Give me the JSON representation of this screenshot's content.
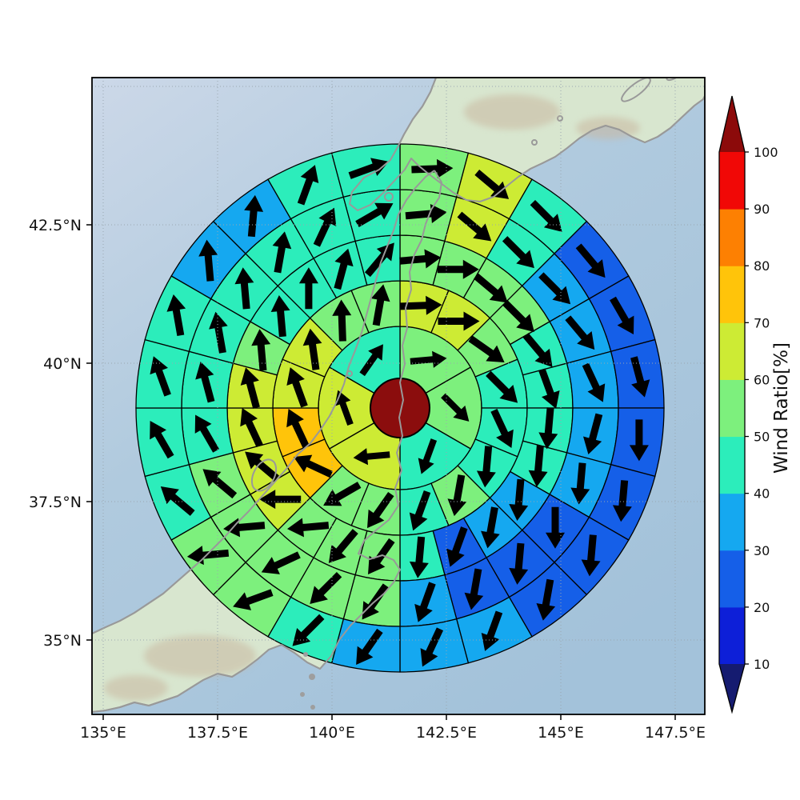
{
  "figure": {
    "background": "#ffffff",
    "plot_border_color": "#000000"
  },
  "chart_data": {
    "type": "polar-sector-heatmap-on-map",
    "title": "",
    "colorbar": {
      "label": "Wind Ratio[%]",
      "tick_labels_top_to_bottom": [
        "100",
        "90",
        "80",
        "70",
        "60",
        "50",
        "40",
        "30",
        "20",
        "10"
      ],
      "bins": [
        {
          "range": "10-20",
          "color": "#0d1fd8"
        },
        {
          "range": "20-30",
          "color": "#155fe8"
        },
        {
          "range": "30-40",
          "color": "#15a8f0"
        },
        {
          "range": "40-50",
          "color": "#2cedbb"
        },
        {
          "range": "50-60",
          "color": "#7df07d"
        },
        {
          "range": "60-70",
          "color": "#cdeb34"
        },
        {
          "range": "70-80",
          "color": "#ffc40a"
        },
        {
          "range": "80-90",
          "color": "#fd8002"
        },
        {
          "range": "90-100",
          "color": "#f10806"
        }
      ],
      "extend_over_color": "#8c0a0a",
      "extend_under_color": "#151b70"
    },
    "x_axis": {
      "tick_labels": [
        "135°E",
        "137.5°E",
        "140°E",
        "142.5°E",
        "145°E",
        "147.5°E"
      ]
    },
    "y_axis": {
      "tick_labels": [
        "35°N",
        "37.5°N",
        "40°N",
        "42.5°N"
      ]
    },
    "epicenter": {
      "marker": "filled-circle",
      "color": "#8b0d0d",
      "outline": "#000000"
    },
    "map": {
      "sea_color": "#abc8de",
      "land_color": "#d8e6cf",
      "coast_color": "#999999",
      "grid_color": "#9aa7b0"
    },
    "arrow_color": "#000000",
    "rings": [
      {
        "sector_count": 6,
        "wind_ratio_bins": [
          "50-60",
          "50-60",
          "40-50",
          "60-70",
          "60-70",
          "40-50"
        ],
        "arrow_to_deg": [
          85,
          135,
          200,
          265,
          340,
          35
        ]
      },
      {
        "sector_count": 16,
        "wind_ratio_bins": [
          "60-70",
          "60-70",
          "50-60",
          "40-50",
          "40-50",
          "40-50",
          "50-60",
          "40-50",
          "50-60",
          "50-60",
          "70-80",
          "70-80",
          "60-70",
          "60-70",
          "50-60",
          "50-60"
        ],
        "arrow_to_deg": [
          88,
          90,
          125,
          135,
          155,
          185,
          190,
          200,
          215,
          240,
          295,
          335,
          340,
          352,
          358,
          10
        ]
      },
      {
        "sector_count": 24,
        "wind_ratio_bins": [
          "50-60",
          "50-60",
          "50-60",
          "50-60",
          "40-50",
          "40-50",
          "40-50",
          "40-50",
          "30-40",
          "30-40",
          "20-30",
          "40-50",
          "50-60",
          "50-60",
          "50-60",
          "60-70",
          "60-70",
          "60-70",
          "60-70",
          "50-60",
          "40-50",
          "40-50",
          "40-50",
          "40-50"
        ],
        "arrow_to_deg": [
          85,
          90,
          130,
          135,
          140,
          160,
          185,
          185,
          185,
          190,
          200,
          185,
          215,
          220,
          265,
          270,
          310,
          335,
          345,
          355,
          355,
          0,
          15,
          40
        ]
      },
      {
        "sector_count": 24,
        "wind_ratio_bins": [
          "50-60",
          "60-70",
          "40-50",
          "30-40",
          "30-40",
          "30-40",
          "30-40",
          "30-40",
          "20-30",
          "20-30",
          "20-30",
          "30-40",
          "50-60",
          "50-60",
          "50-60",
          "50-60",
          "50-60",
          "40-50",
          "40-50",
          "40-50",
          "40-50",
          "40-50",
          "40-50",
          "40-50"
        ],
        "arrow_to_deg": [
          85,
          130,
          135,
          135,
          140,
          155,
          195,
          185,
          180,
          185,
          190,
          200,
          215,
          225,
          245,
          265,
          310,
          330,
          345,
          350,
          355,
          10,
          25,
          60
        ]
      },
      {
        "sector_count": 24,
        "wind_ratio_bins": [
          "50-60",
          "60-70",
          "40-50",
          "20-30",
          "20-30",
          "20-30",
          "20-30",
          "20-30",
          "20-30",
          "20-30",
          "30-40",
          "30-40",
          "30-40",
          "40-50",
          "50-60",
          "50-60",
          "40-50",
          "40-50",
          "40-50",
          "40-50",
          "30-40",
          "30-40",
          "40-50",
          "40-50"
        ],
        "arrow_to_deg": [
          88,
          130,
          135,
          140,
          150,
          165,
          180,
          185,
          185,
          190,
          200,
          205,
          215,
          225,
          250,
          265,
          310,
          330,
          340,
          350,
          355,
          5,
          20,
          70
        ]
      }
    ]
  }
}
